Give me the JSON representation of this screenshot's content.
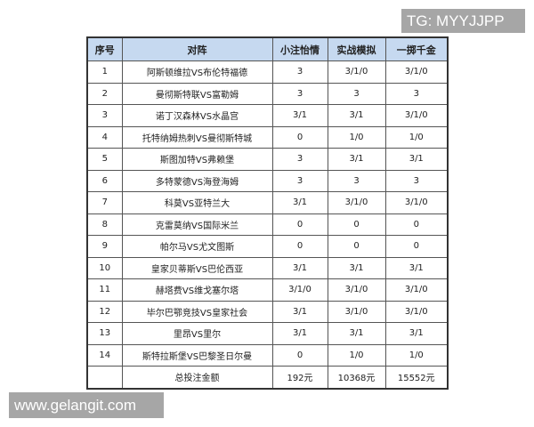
{
  "table": {
    "headers": [
      "序号",
      "对阵",
      "小注怡情",
      "实战模拟",
      "一掷千金"
    ],
    "rows": [
      [
        "1",
        "阿斯顿维拉VS布伦特福德",
        "3",
        "3/1/0",
        "3/1/0"
      ],
      [
        "2",
        "曼彻斯特联VS富勒姆",
        "3",
        "3",
        "3"
      ],
      [
        "3",
        "诺丁汉森林VS水晶宫",
        "3/1",
        "3/1",
        "3/1/0"
      ],
      [
        "4",
        "托特纳姆热刺VS曼彻斯特城",
        "0",
        "1/0",
        "1/0"
      ],
      [
        "5",
        "斯图加特VS弗赖堡",
        "3",
        "3/1",
        "3/1"
      ],
      [
        "6",
        "多特蒙德VS海登海姆",
        "3",
        "3",
        "3"
      ],
      [
        "7",
        "科莫VS亚特兰大",
        "3/1",
        "3/1/0",
        "3/1/0"
      ],
      [
        "8",
        "克雷莫纳VS国际米兰",
        "0",
        "0",
        "0"
      ],
      [
        "9",
        "帕尔马VS尤文图斯",
        "0",
        "0",
        "0"
      ],
      [
        "10",
        "皇家贝蒂斯VS巴伦西亚",
        "3/1",
        "3/1",
        "3/1"
      ],
      [
        "11",
        "赫塔费VS维戈塞尔塔",
        "3/1/0",
        "3/1/0",
        "3/1/0"
      ],
      [
        "12",
        "毕尔巴鄂竞技VS皇家社会",
        "3/1",
        "3/1/0",
        "3/1/0"
      ],
      [
        "13",
        "里昂VS里尔",
        "3/1",
        "3/1",
        "3/1"
      ],
      [
        "14",
        "斯特拉斯堡VS巴黎圣日尔曼",
        "0",
        "1/0",
        "1/0"
      ]
    ],
    "total": {
      "label": "总投注金额",
      "values": [
        "192元",
        "10368元",
        "15552元"
      ]
    }
  },
  "watermarks": {
    "tg": "TG: MYYJJPP",
    "site": "www.gelangit.com"
  },
  "colors": {
    "header_bg": "#c6d9f0",
    "watermark_bg": "#a6a6a6"
  }
}
